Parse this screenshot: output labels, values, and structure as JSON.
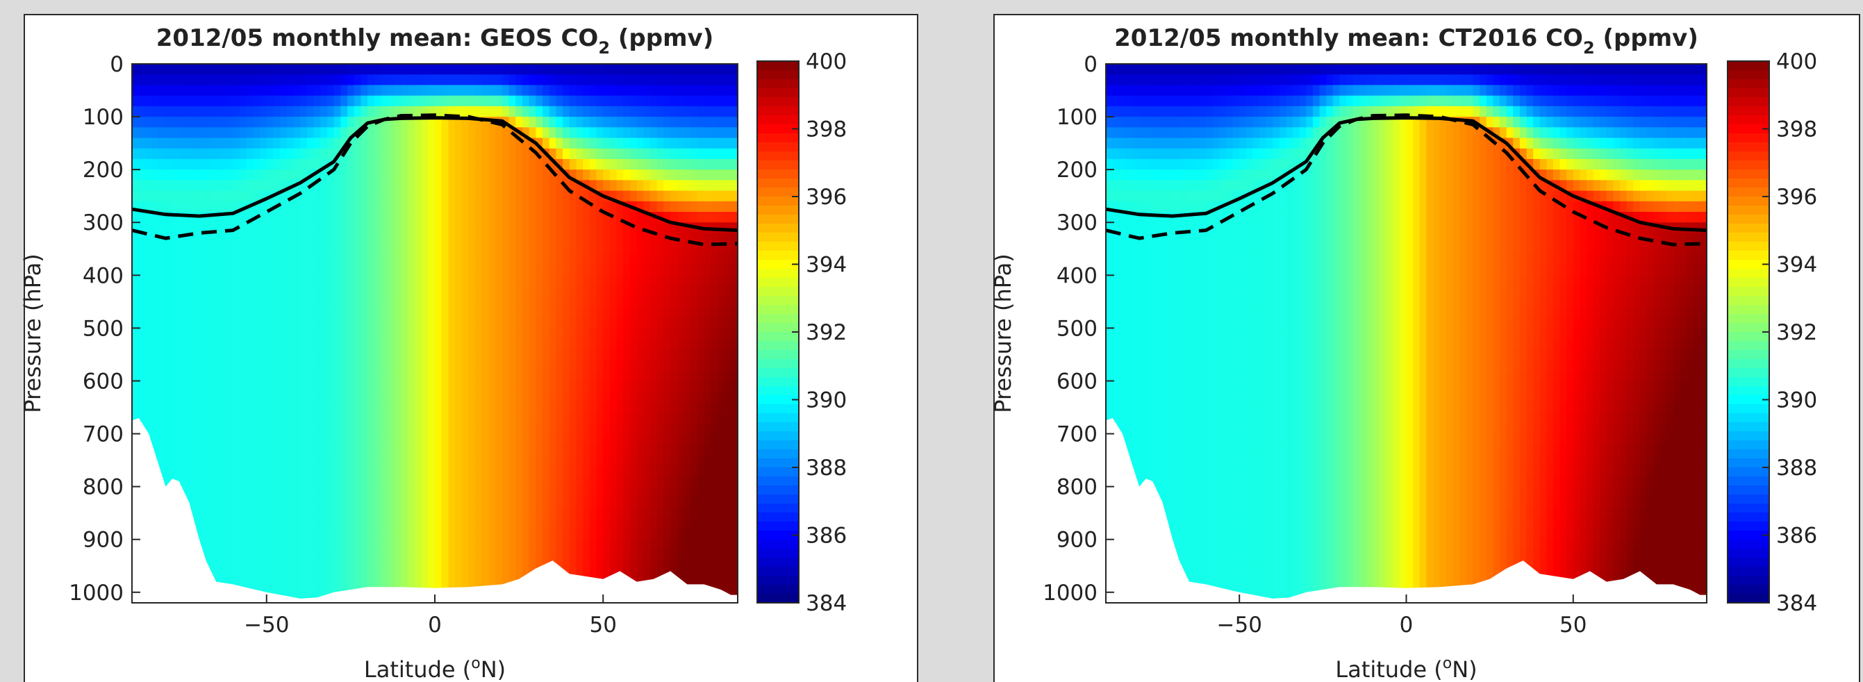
{
  "colorbar": {
    "min": 384,
    "max": 400,
    "ticks": [
      "400",
      "398",
      "396",
      "394",
      "392",
      "390",
      "388",
      "386",
      "384"
    ],
    "colormap": [
      "#00007f",
      "#0000ff",
      "#007fff",
      "#00ffff",
      "#7fff7f",
      "#ffff00",
      "#ff7f00",
      "#ff0000",
      "#7f0000"
    ]
  },
  "chart_data": [
    {
      "type": "heatmap",
      "title_main": "2012/05 monthly mean: GEOS CO",
      "title_sub": "2",
      "title_unit": " (ppmv)",
      "xlabel_main": "Latitude (",
      "xlabel_sup": "o",
      "xlabel_end": "N)",
      "ylabel": "Pressure (hPa)",
      "xlim": [
        -90,
        90
      ],
      "ylim": [
        0,
        1020
      ],
      "y_reversed": true,
      "x_ticks": [
        "-50",
        "0",
        "50"
      ],
      "y_ticks": [
        "0",
        "100",
        "200",
        "300",
        "400",
        "500",
        "600",
        "700",
        "800",
        "900",
        "1000"
      ],
      "tropopause_solid": {
        "lat": [
          -90,
          -80,
          -70,
          -60,
          -50,
          -40,
          -30,
          -25,
          -20,
          -15,
          -10,
          0,
          10,
          20,
          30,
          40,
          50,
          60,
          70,
          80,
          90
        ],
        "p": [
          275,
          285,
          288,
          283,
          255,
          225,
          185,
          140,
          112,
          105,
          103,
          102,
          103,
          108,
          150,
          215,
          250,
          275,
          300,
          312,
          315
        ]
      },
      "tropopause_dashed": {
        "lat": [
          -90,
          -80,
          -70,
          -60,
          -50,
          -40,
          -30,
          -25,
          -20,
          -15,
          -10,
          0,
          10,
          20,
          30,
          40,
          50,
          60,
          70,
          80,
          90
        ],
        "p": [
          315,
          330,
          320,
          315,
          280,
          245,
          200,
          150,
          118,
          105,
          98,
          97,
          100,
          115,
          168,
          240,
          280,
          310,
          330,
          342,
          340
        ]
      },
      "surface": {
        "lat": [
          -90,
          -88,
          -85,
          -82,
          -80,
          -78,
          -76,
          -73,
          -70,
          -68,
          -65,
          -60,
          -50,
          -40,
          -35,
          -30,
          -20,
          -10,
          0,
          10,
          20,
          25,
          30,
          35,
          40,
          45,
          50,
          55,
          60,
          65,
          70,
          75,
          80,
          85,
          88,
          90
        ],
        "p": [
          675,
          670,
          700,
          760,
          800,
          785,
          790,
          830,
          900,
          940,
          980,
          985,
          1000,
          1012,
          1010,
          1000,
          990,
          990,
          992,
          990,
          985,
          975,
          955,
          940,
          965,
          970,
          975,
          960,
          980,
          975,
          960,
          985,
          985,
          995,
          1005,
          1005
        ]
      }
    },
    {
      "type": "heatmap",
      "title_main": "2012/05 monthly mean: CT2016 CO",
      "title_sub": "2",
      "title_unit": " (ppmv)",
      "xlabel_main": "Latitude (",
      "xlabel_sup": "o",
      "xlabel_end": "N)",
      "ylabel": "Pressure (hPa)",
      "xlim": [
        -90,
        90
      ],
      "ylim": [
        0,
        1020
      ],
      "y_reversed": true,
      "x_ticks": [
        "-50",
        "0",
        "50"
      ],
      "y_ticks": [
        "0",
        "100",
        "200",
        "300",
        "400",
        "500",
        "600",
        "700",
        "800",
        "900",
        "1000"
      ],
      "tropopause_solid": {
        "lat": [
          -90,
          -80,
          -70,
          -60,
          -50,
          -40,
          -30,
          -25,
          -20,
          -15,
          -10,
          0,
          10,
          20,
          30,
          40,
          50,
          60,
          70,
          80,
          90
        ],
        "p": [
          275,
          285,
          288,
          283,
          255,
          225,
          185,
          140,
          112,
          105,
          103,
          102,
          103,
          108,
          150,
          215,
          250,
          275,
          300,
          312,
          315
        ]
      },
      "tropopause_dashed": {
        "lat": [
          -90,
          -80,
          -70,
          -60,
          -50,
          -40,
          -30,
          -25,
          -20,
          -15,
          -10,
          0,
          10,
          20,
          30,
          40,
          50,
          60,
          70,
          80,
          90
        ],
        "p": [
          315,
          330,
          320,
          315,
          280,
          245,
          200,
          150,
          118,
          105,
          98,
          97,
          100,
          115,
          168,
          240,
          280,
          310,
          330,
          342,
          340
        ]
      },
      "surface": {
        "lat": [
          -90,
          -88,
          -85,
          -82,
          -80,
          -78,
          -76,
          -73,
          -70,
          -68,
          -65,
          -60,
          -50,
          -40,
          -35,
          -30,
          -20,
          -10,
          0,
          10,
          20,
          25,
          30,
          35,
          40,
          45,
          50,
          55,
          60,
          65,
          70,
          75,
          80,
          85,
          88,
          90
        ],
        "p": [
          675,
          670,
          700,
          760,
          800,
          785,
          790,
          830,
          900,
          940,
          980,
          985,
          1000,
          1012,
          1010,
          1000,
          990,
          990,
          992,
          990,
          985,
          975,
          955,
          940,
          965,
          970,
          975,
          960,
          980,
          975,
          960,
          985,
          985,
          995,
          1005,
          1005
        ]
      }
    }
  ]
}
